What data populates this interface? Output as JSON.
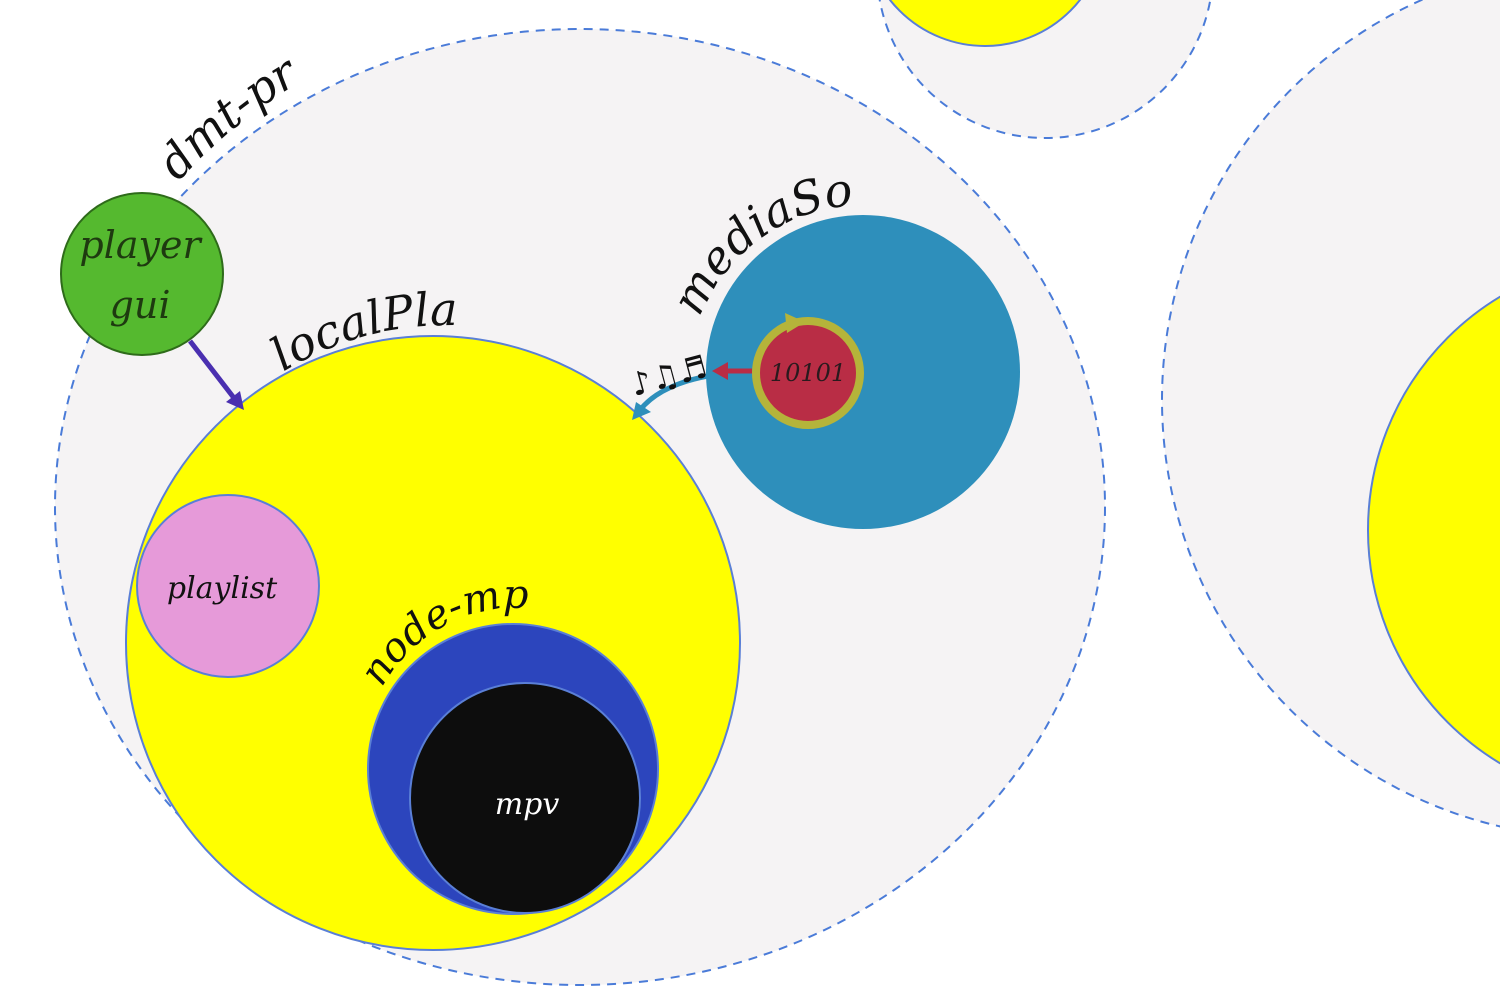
{
  "labels": {
    "dmt_proc": "dmt-proc",
    "player_gui_line1": "player",
    "player_gui_line2": "gui",
    "local_player": "localPlayer",
    "media_source": "mediaSource",
    "playlist": "playlist",
    "node_mpv": "node-mpv",
    "mpv": "mpv",
    "stream_data": "10101",
    "music_notes": "♪♫♬"
  },
  "colors": {
    "process_fill": "#f5f3f4",
    "dashed_border": "#4a7bd8",
    "player_gui": "#55b92f",
    "player_gui_border": "#2e6b1a",
    "local_player": "#ffff00",
    "media_source": "#2e8fbb",
    "stream": "#b92d45",
    "stream_ring": "#b5b43a",
    "playlist": "#e69ad9",
    "node_mpv": "#2c45bd",
    "mpv": "#0d0d0d",
    "gui_arrow": "#4a2fb0",
    "audio_arrow": "#2e8fbb",
    "stream_arrow": "#b92d45",
    "circle_stroke": "#5a7fd6"
  }
}
